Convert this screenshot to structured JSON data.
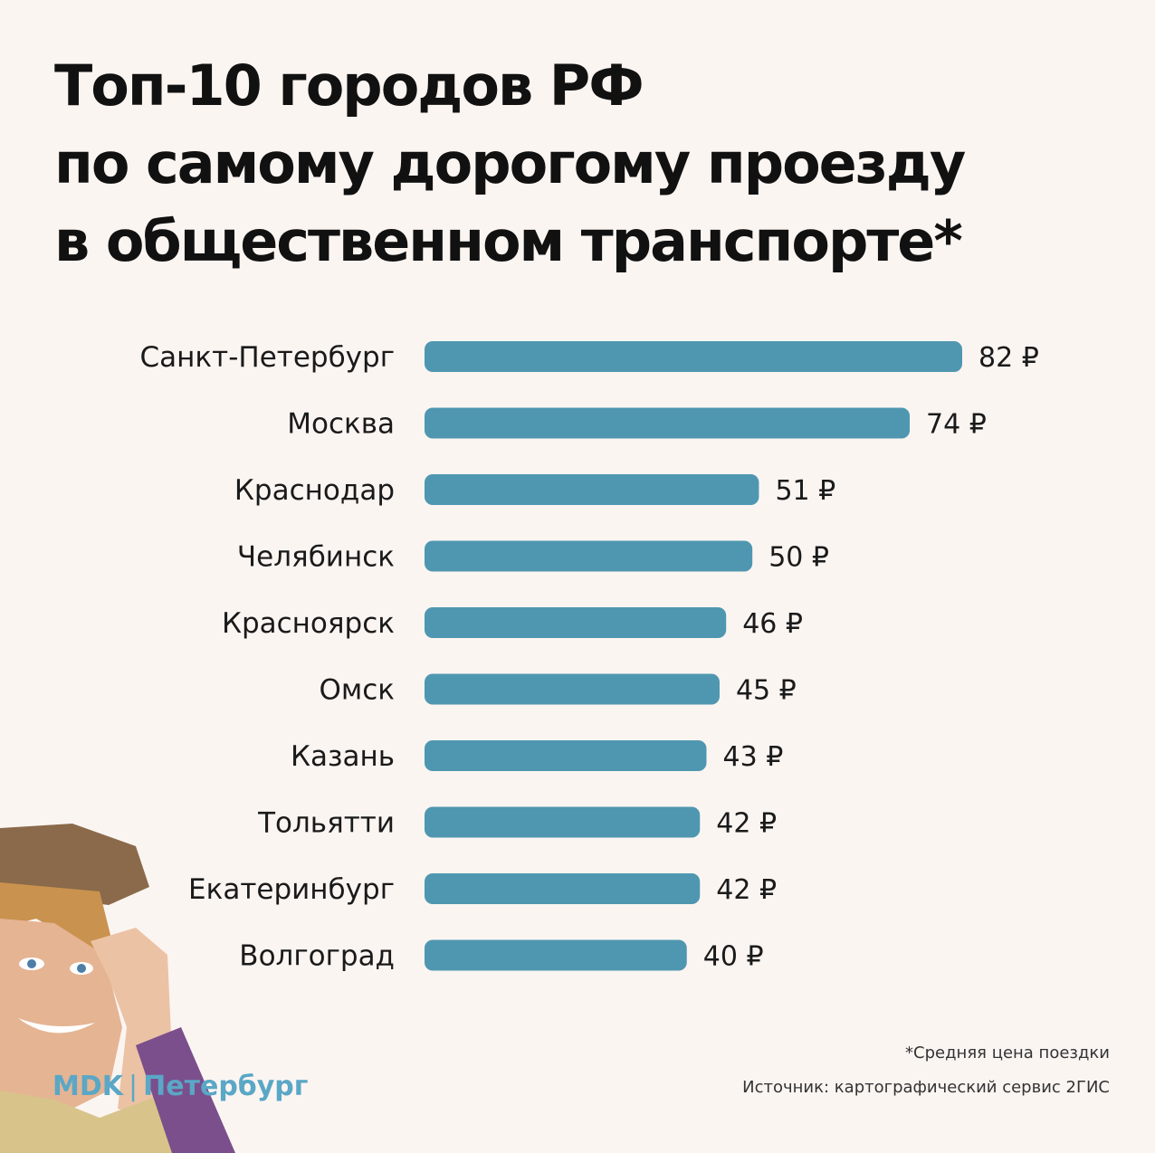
{
  "header": {
    "title_lines": [
      "Топ-10 городов РФ",
      "по самому дорогому проезду",
      "в общественном транспорте*"
    ]
  },
  "chart_data": {
    "type": "bar",
    "orientation": "horizontal",
    "categories": [
      "Санкт-Петербург",
      "Москва",
      "Краснодар",
      "Челябинск",
      "Красноярск",
      "Омск",
      "Казань",
      "Тольятти",
      "Екатеринбург",
      "Волгоград"
    ],
    "values": [
      82,
      74,
      51,
      50,
      46,
      45,
      43,
      42,
      42,
      40
    ],
    "value_labels": [
      "82 ₽",
      "74 ₽",
      "51 ₽",
      "50 ₽",
      "46 ₽",
      "45 ₽",
      "43 ₽",
      "42 ₽",
      "42 ₽",
      "40 ₽"
    ],
    "bar_color": "#4f97b0",
    "grid": false
  },
  "footer": {
    "footnote": "*Средняя цена поездки",
    "source": "Источник: картографический сервис 2ГИС",
    "brand_left": "MDK",
    "brand_sep": "|",
    "brand_right": "Петербург"
  },
  "colors": {
    "background": "#fbf5f2",
    "bar": "#4f97b0",
    "brand": "#5aa7c6"
  }
}
